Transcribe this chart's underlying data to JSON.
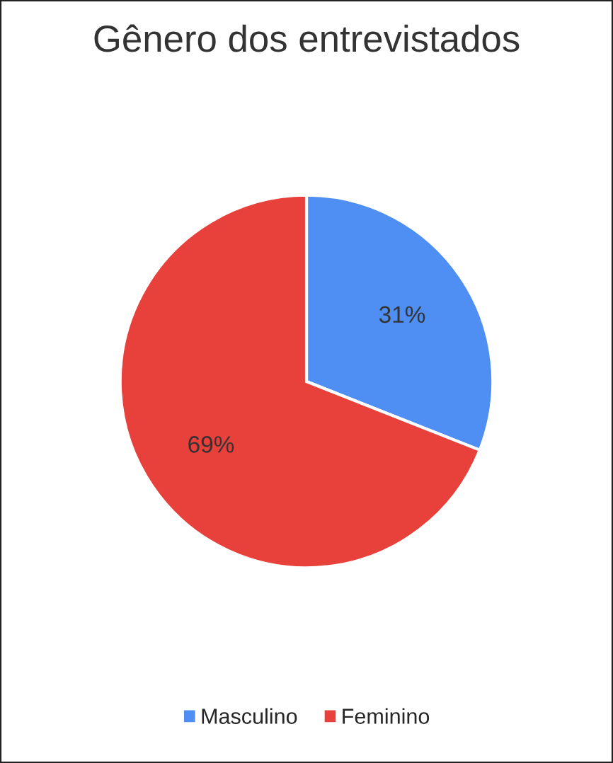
{
  "chart_data": {
    "type": "pie",
    "title": "Gênero dos entrevistados",
    "categories": [
      "Masculino",
      "Feminino"
    ],
    "values": [
      31,
      69
    ],
    "value_labels": [
      "31%",
      "69%"
    ],
    "colors": [
      "#4f8ef3",
      "#e8403a"
    ],
    "legend": "bottom"
  }
}
